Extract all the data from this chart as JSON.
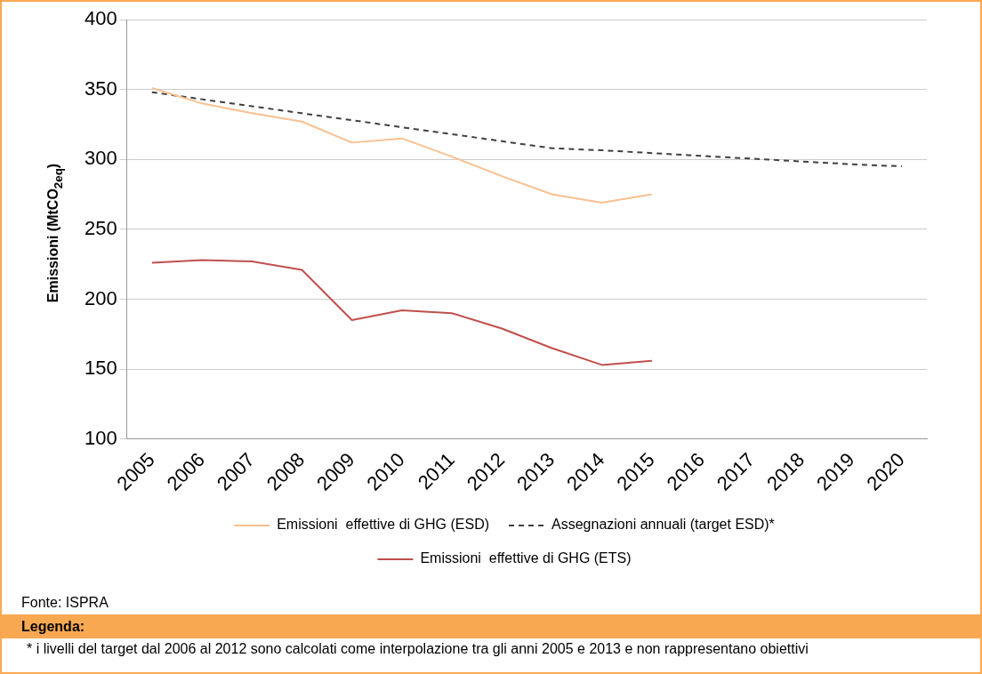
{
  "chart_data": {
    "type": "line",
    "ylabel": "Emissioni (MtCO$_{2eq}$)",
    "categories": [
      "2005",
      "2006",
      "2007",
      "2008",
      "2009",
      "2010",
      "2011",
      "2012",
      "2013",
      "2014",
      "2015",
      "2016",
      "2017",
      "2018",
      "2019",
      "2020"
    ],
    "series": [
      {
        "name": "Emissioni  effettive di GHG (ESD)",
        "color": "#fac090",
        "values": [
          351,
          340,
          333,
          327,
          312,
          315,
          302,
          288,
          275,
          269,
          275,
          null,
          null,
          null,
          null,
          null
        ]
      },
      {
        "name": "Assegnazioni annuali (target ESD)*",
        "color": "#404040",
        "line_style": "dashed",
        "values": [
          348,
          343,
          338,
          333,
          328,
          323,
          318,
          313,
          308,
          306.5,
          304.5,
          302.5,
          300.5,
          298.5,
          296.5,
          295
        ]
      },
      {
        "name": "Emissioni  effettive di GHG (ETS)",
        "color": "#c0504d",
        "values": [
          226,
          228,
          227,
          221,
          185,
          192,
          190,
          179,
          165,
          153,
          156,
          null,
          null,
          null,
          null,
          null
        ]
      }
    ],
    "ylim": [
      100,
      400
    ],
    "yticks": [
      100,
      150,
      200,
      250,
      300,
      350,
      400
    ],
    "grid": "y",
    "legend": "bottom",
    "marker": "none",
    "annotations": [
      "Fonte: ISPRA",
      "Legenda:",
      "* i livelli del target dal 2006 al 2012 sono calcolati come interpolazione tra gli anni 2005 e 2013 e non rappresentano obiettivi"
    ]
  }
}
